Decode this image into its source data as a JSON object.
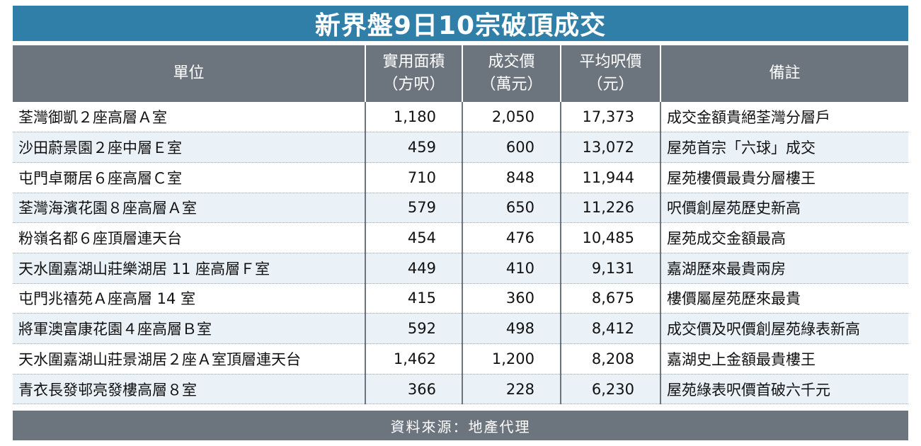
{
  "title": "新界盤9日10宗破頂成交",
  "headers": {
    "unit": "單位",
    "area_1": "實用面積",
    "area_2": "（方呎）",
    "price_1": "成交價",
    "price_2": "（萬元）",
    "avg_1": "平均呎價",
    "avg_2": "（元）",
    "remark": "備註"
  },
  "rows": [
    {
      "unit": "荃灣御凱２座高層Ａ室",
      "area": "1,180",
      "price": "2,050",
      "avg": "17,373",
      "remark": "成交金額貴絕荃灣分層戶"
    },
    {
      "unit": "沙田蔚景園２座中層Ｅ室",
      "area": "459",
      "price": "600",
      "avg": "13,072",
      "remark": "屋苑首宗「六球」成交"
    },
    {
      "unit": "屯門卓爾居６座高層Ｃ室",
      "area": "710",
      "price": "848",
      "avg": "11,944",
      "remark": "屋苑樓價最貴分層樓王"
    },
    {
      "unit": "荃灣海濱花園８座高層Ａ室",
      "area": "579",
      "price": "650",
      "avg": "11,226",
      "remark": "呎價創屋苑歷史新高"
    },
    {
      "unit": "粉嶺名都６座頂層連天台",
      "area": "454",
      "price": "476",
      "avg": "10,485",
      "remark": "屋苑成交金額最高"
    },
    {
      "unit": "天水圍嘉湖山莊樂湖居 11 座高層Ｆ室",
      "area": "449",
      "price": "410",
      "avg": "9,131",
      "remark": "嘉湖歷來最貴兩房"
    },
    {
      "unit": "屯門兆禧苑Ａ座高層 14 室",
      "area": "415",
      "price": "360",
      "avg": "8,675",
      "remark": "樓價屬屋苑歷來最貴"
    },
    {
      "unit": "將軍澳富康花園４座高層Ｂ室",
      "area": "592",
      "price": "498",
      "avg": "8,412",
      "remark": "成交價及呎價創屋苑綠表新高"
    },
    {
      "unit": "天水圍嘉湖山莊景湖居２座Ａ室頂層連天台",
      "area": "1,462",
      "price": "1,200",
      "avg": "8,208",
      "remark": "嘉湖史上金額最貴樓王"
    },
    {
      "unit": "青衣長發邨亮發樓高層８室",
      "area": "366",
      "price": "228",
      "avg": "6,230",
      "remark": "屋苑綠表呎價首破六千元"
    }
  ],
  "footer": "資料來源：地產代理",
  "colors": {
    "title_bg": "#2f7fa8",
    "header_bg": "#6c747d",
    "stripe": "#eaf1f7"
  }
}
